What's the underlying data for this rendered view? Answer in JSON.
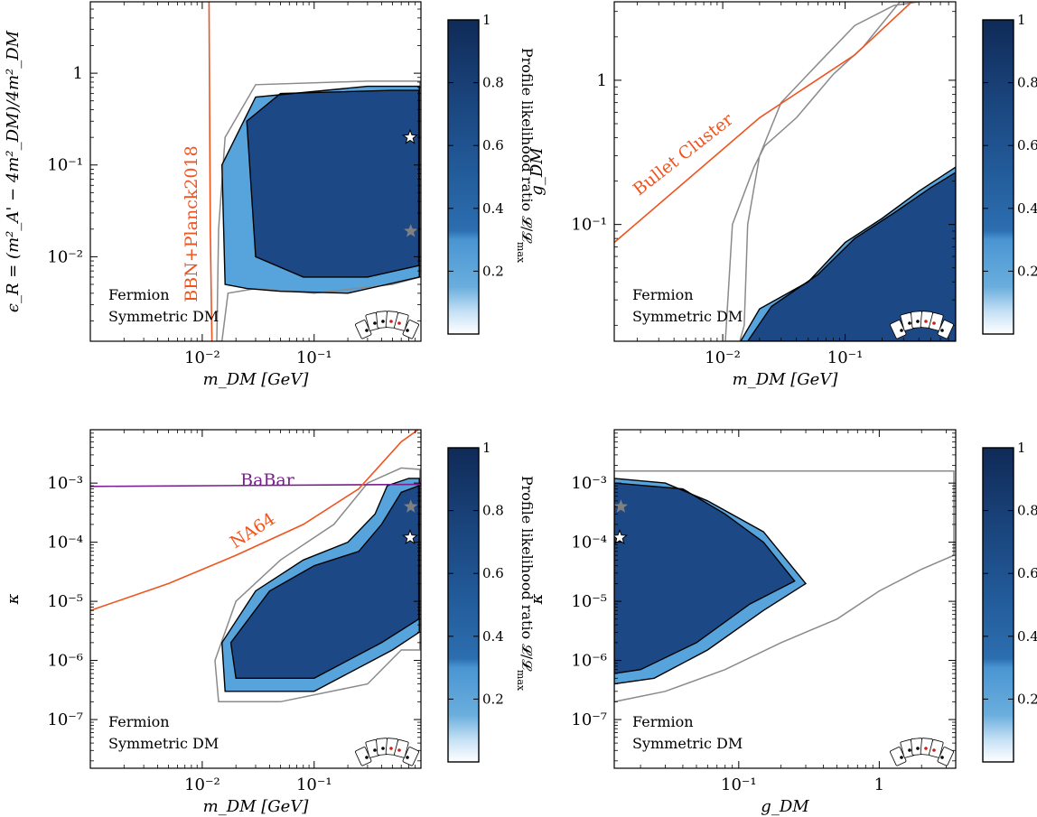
{
  "colorbar": {
    "label": "Profile likelihood ratio 𝓛/𝓛",
    "label_sub": "max",
    "ticks": [
      0.2,
      0.4,
      0.6,
      0.8,
      1.0
    ],
    "colors": [
      "#ffffff",
      "#c6e1f5",
      "#6aaedd",
      "#3d8bcc",
      "#245c9e",
      "#1a3f75",
      "#0f2a57"
    ]
  },
  "colors": {
    "contour": "#000000",
    "contour_outer": "#8a8a8a",
    "orange": "#f0531e",
    "purple": "#7b1f8f",
    "star_grey": "#808080"
  },
  "chart_data": [
    {
      "type": "heatmap",
      "xlabel": "m_DM [GeV]",
      "ylabel": "ϵ_R = (m²_A' − 4m²_DM)/4m²_DM",
      "xscale": "log",
      "yscale": "log",
      "xlim": [
        0.001,
        0.9
      ],
      "ylim": [
        0.0012,
        6
      ],
      "xticks": [
        {
          "v": 0.01,
          "label": "10⁻²"
        },
        {
          "v": 0.1,
          "label": "10⁻¹"
        }
      ],
      "yticks": [
        {
          "v": 0.01,
          "label": "10⁻²"
        },
        {
          "v": 0.1,
          "label": "10⁻¹"
        },
        {
          "v": 1,
          "label": "1"
        }
      ],
      "annotations": [
        "Fermion",
        "Symmetric DM"
      ],
      "constraint_lines": [
        {
          "label": "BBN+Planck2018",
          "color": "orange",
          "points": [
            [
              0.0115,
              6
            ],
            [
              0.0118,
              0.02
            ],
            [
              0.0122,
              0.0012
            ]
          ]
        }
      ],
      "region_outer": [
        [
          0.0135,
          0.0012
        ],
        [
          0.014,
          0.02
        ],
        [
          0.016,
          0.2
        ],
        [
          0.03,
          0.75
        ],
        [
          0.3,
          0.82
        ],
        [
          0.88,
          0.82
        ],
        [
          0.88,
          0.006
        ],
        [
          0.5,
          0.005
        ],
        [
          0.1,
          0.004
        ],
        [
          0.03,
          0.0045
        ],
        [
          0.017,
          0.004
        ],
        [
          0.015,
          0.0012
        ]
      ],
      "region_2sigma": [
        [
          0.016,
          0.005
        ],
        [
          0.015,
          0.1
        ],
        [
          0.03,
          0.55
        ],
        [
          0.3,
          0.72
        ],
        [
          0.87,
          0.72
        ],
        [
          0.87,
          0.006
        ],
        [
          0.45,
          0.005
        ],
        [
          0.2,
          0.004
        ],
        [
          0.05,
          0.0042
        ],
        [
          0.025,
          0.0045
        ]
      ],
      "region_1sigma": [
        [
          0.03,
          0.01
        ],
        [
          0.025,
          0.3
        ],
        [
          0.05,
          0.6
        ],
        [
          0.5,
          0.65
        ],
        [
          0.86,
          0.65
        ],
        [
          0.86,
          0.008
        ],
        [
          0.3,
          0.006
        ],
        [
          0.08,
          0.006
        ]
      ],
      "best_fit_white": [
        0.72,
        0.2
      ],
      "best_fit_grey": [
        0.73,
        0.019
      ]
    },
    {
      "type": "heatmap",
      "xlabel": "m_DM [GeV]",
      "ylabel": "g_DM",
      "xscale": "log",
      "yscale": "log",
      "xlim": [
        0.0013,
        0.8
      ],
      "ylim": [
        0.0155,
        3.5
      ],
      "xticks": [
        {
          "v": 0.01,
          "label": "10⁻²"
        },
        {
          "v": 0.1,
          "label": "10⁻¹"
        }
      ],
      "yticks": [
        {
          "v": 0.1,
          "label": "10⁻¹"
        },
        {
          "v": 1,
          "label": "1"
        }
      ],
      "annotations": [
        "Fermion",
        "Symmetric DM"
      ],
      "constraint_lines": [
        {
          "label": "Bullet Cluster",
          "color": "orange",
          "points": [
            [
              0.0013,
              0.075
            ],
            [
              0.02,
              0.55
            ],
            [
              0.12,
              1.5
            ],
            [
              0.35,
              3.5
            ]
          ]
        }
      ],
      "region_outer": [
        [
          0.0105,
          0.0155
        ],
        [
          0.012,
          0.1
        ],
        [
          0.018,
          0.25
        ],
        [
          0.022,
          0.35
        ],
        [
          0.04,
          0.55
        ],
        [
          0.08,
          1.1
        ],
        [
          0.14,
          1.7
        ],
        [
          0.28,
          3.5
        ],
        [
          0.4,
          3.5
        ],
        [
          0.25,
          3.3
        ],
        [
          0.12,
          2.4
        ],
        [
          0.06,
          1.3
        ],
        [
          0.03,
          0.7
        ],
        [
          0.02,
          0.3
        ],
        [
          0.016,
          0.1
        ],
        [
          0.015,
          0.02
        ],
        [
          0.0138,
          0.0155
        ]
      ],
      "region_2sigma": [
        [
          0.014,
          0.0155
        ],
        [
          0.02,
          0.026
        ],
        [
          0.05,
          0.04
        ],
        [
          0.1,
          0.075
        ],
        [
          0.2,
          0.11
        ],
        [
          0.4,
          0.17
        ],
        [
          0.8,
          0.25
        ],
        [
          0.8,
          0.0155
        ]
      ],
      "region_1sigma": [
        [
          0.016,
          0.0155
        ],
        [
          0.025,
          0.027
        ],
        [
          0.06,
          0.045
        ],
        [
          0.12,
          0.08
        ],
        [
          0.25,
          0.12
        ],
        [
          0.5,
          0.18
        ],
        [
          0.8,
          0.23
        ],
        [
          0.8,
          0.0155
        ]
      ]
    },
    {
      "type": "heatmap",
      "xlabel": "m_DM [GeV]",
      "ylabel": "κ",
      "xscale": "log",
      "yscale": "log",
      "xlim": [
        0.001,
        0.9
      ],
      "ylim": [
        1.5e-08,
        0.008
      ],
      "xticks": [
        {
          "v": 0.01,
          "label": "10⁻²"
        },
        {
          "v": 0.1,
          "label": "10⁻¹"
        }
      ],
      "yticks": [
        {
          "v": 1e-07,
          "label": "10⁻⁷"
        },
        {
          "v": 1e-06,
          "label": "10⁻⁶"
        },
        {
          "v": 1e-05,
          "label": "10⁻⁵"
        },
        {
          "v": 0.0001,
          "label": "10⁻⁴"
        },
        {
          "v": 0.001,
          "label": "10⁻³"
        }
      ],
      "annotations": [
        "Fermion",
        "Symmetric DM"
      ],
      "constraint_lines": [
        {
          "label": "BaBar",
          "color": "purple",
          "points": [
            [
              0.001,
              0.00088
            ],
            [
              0.9,
              0.00095
            ]
          ]
        },
        {
          "label": "NA64",
          "color": "orange",
          "points": [
            [
              0.001,
              7e-06
            ],
            [
              0.005,
              2e-05
            ],
            [
              0.02,
              6e-05
            ],
            [
              0.08,
              0.0002
            ],
            [
              0.25,
              0.0008
            ],
            [
              0.6,
              0.005
            ],
            [
              0.85,
              0.008
            ]
          ]
        }
      ],
      "region_outer": [
        [
          0.014,
          2e-07
        ],
        [
          0.013,
          1e-06
        ],
        [
          0.02,
          1e-05
        ],
        [
          0.05,
          5e-05
        ],
        [
          0.15,
          0.0002
        ],
        [
          0.3,
          0.001
        ],
        [
          0.6,
          0.0018
        ],
        [
          0.88,
          0.0017
        ],
        [
          0.88,
          1.5e-06
        ],
        [
          0.6,
          1.5e-06
        ],
        [
          0.3,
          4e-07
        ],
        [
          0.05,
          2e-07
        ]
      ],
      "region_2sigma": [
        [
          0.016,
          3e-07
        ],
        [
          0.015,
          2e-06
        ],
        [
          0.03,
          1.5e-05
        ],
        [
          0.08,
          5e-05
        ],
        [
          0.2,
          0.0001
        ],
        [
          0.35,
          0.0003
        ],
        [
          0.45,
          0.0009
        ],
        [
          0.7,
          0.0012
        ],
        [
          0.87,
          0.0012
        ],
        [
          0.87,
          3e-06
        ],
        [
          0.5,
          1.5e-06
        ],
        [
          0.1,
          3e-07
        ]
      ],
      "region_1sigma": [
        [
          0.02,
          5e-07
        ],
        [
          0.018,
          2e-06
        ],
        [
          0.04,
          1.5e-05
        ],
        [
          0.1,
          4e-05
        ],
        [
          0.25,
          7e-05
        ],
        [
          0.4,
          0.0002
        ],
        [
          0.6,
          0.0007
        ],
        [
          0.86,
          0.0009
        ],
        [
          0.86,
          5e-06
        ],
        [
          0.4,
          2e-06
        ],
        [
          0.1,
          5e-07
        ]
      ],
      "best_fit_white": [
        0.72,
        0.00012
      ],
      "best_fit_grey": [
        0.73,
        0.0004
      ]
    },
    {
      "type": "heatmap",
      "xlabel": "g_DM",
      "ylabel": "κ",
      "xscale": "log",
      "yscale": "log",
      "xlim": [
        0.013,
        3.5
      ],
      "ylim": [
        1.5e-08,
        0.008
      ],
      "xticks": [
        {
          "v": 0.1,
          "label": "10⁻¹"
        },
        {
          "v": 1,
          "label": "1"
        }
      ],
      "yticks": [
        {
          "v": 1e-07,
          "label": "10⁻⁷"
        },
        {
          "v": 1e-06,
          "label": "10⁻⁶"
        },
        {
          "v": 1e-05,
          "label": "10⁻⁵"
        },
        {
          "v": 0.0001,
          "label": "10⁻⁴"
        },
        {
          "v": 0.001,
          "label": "10⁻³"
        }
      ],
      "annotations": [
        "Fermion",
        "Symmetric DM"
      ],
      "region_outer": [
        [
          0.013,
          0.0016
        ],
        [
          3.4,
          0.0016
        ],
        [
          3.4,
          6e-05
        ],
        [
          2,
          3.5e-05
        ],
        [
          1,
          1.5e-05
        ],
        [
          0.5,
          5e-06
        ],
        [
          0.2,
          2e-06
        ],
        [
          0.08,
          7e-07
        ],
        [
          0.03,
          3e-07
        ],
        [
          0.013,
          2e-07
        ]
      ],
      "region_2sigma": [
        [
          0.013,
          0.0012
        ],
        [
          0.03,
          0.001
        ],
        [
          0.06,
          0.0005
        ],
        [
          0.15,
          0.00015
        ],
        [
          0.3,
          2e-05
        ],
        [
          0.15,
          7e-06
        ],
        [
          0.06,
          1.5e-06
        ],
        [
          0.025,
          5e-07
        ],
        [
          0.013,
          4e-07
        ]
      ],
      "region_1sigma": [
        [
          0.013,
          0.001
        ],
        [
          0.04,
          0.0008
        ],
        [
          0.08,
          0.0003
        ],
        [
          0.15,
          0.0001
        ],
        [
          0.25,
          2.2e-05
        ],
        [
          0.12,
          9e-06
        ],
        [
          0.05,
          2e-06
        ],
        [
          0.02,
          7e-07
        ],
        [
          0.013,
          6e-07
        ]
      ],
      "best_fit_white": [
        0.0142,
        0.00012
      ],
      "best_fit_grey": [
        0.0145,
        0.0004
      ]
    }
  ]
}
